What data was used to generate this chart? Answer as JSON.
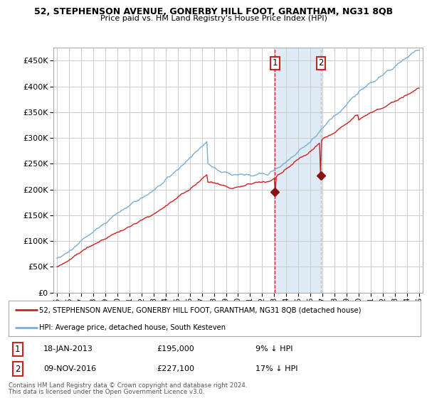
{
  "title": "52, STEPHENSON AVENUE, GONERBY HILL FOOT, GRANTHAM, NG31 8QB",
  "subtitle": "Price paid vs. HM Land Registry's House Price Index (HPI)",
  "legend_line1": "52, STEPHENSON AVENUE, GONERBY HILL FOOT, GRANTHAM, NG31 8QB (detached house)",
  "legend_line2": "HPI: Average price, detached house, South Kesteven",
  "annotation1_date": "18-JAN-2013",
  "annotation1_price": "£195,000",
  "annotation1_hpi": "9% ↓ HPI",
  "annotation2_date": "09-NOV-2016",
  "annotation2_price": "£227,100",
  "annotation2_hpi": "17% ↓ HPI",
  "footer1": "Contains HM Land Registry data © Crown copyright and database right 2024.",
  "footer2": "This data is licensed under the Open Government Licence v3.0.",
  "plot_bg_color": "#ffffff",
  "grid_color": "#cccccc",
  "hpi_line_color": "#7aadd4",
  "price_line_color": "#cc2222",
  "highlight_color": "#deeaf4",
  "vline1_color": "#dd2222",
  "vline2_color": "#aabbcc",
  "marker_color": "#881111",
  "ylim": [
    0,
    475000
  ],
  "yticks": [
    0,
    50000,
    100000,
    150000,
    200000,
    250000,
    300000,
    350000,
    400000,
    450000
  ],
  "sale1_year": 2013.05,
  "sale2_year": 2016.87,
  "sale1_price": 195000,
  "sale2_price": 227100
}
